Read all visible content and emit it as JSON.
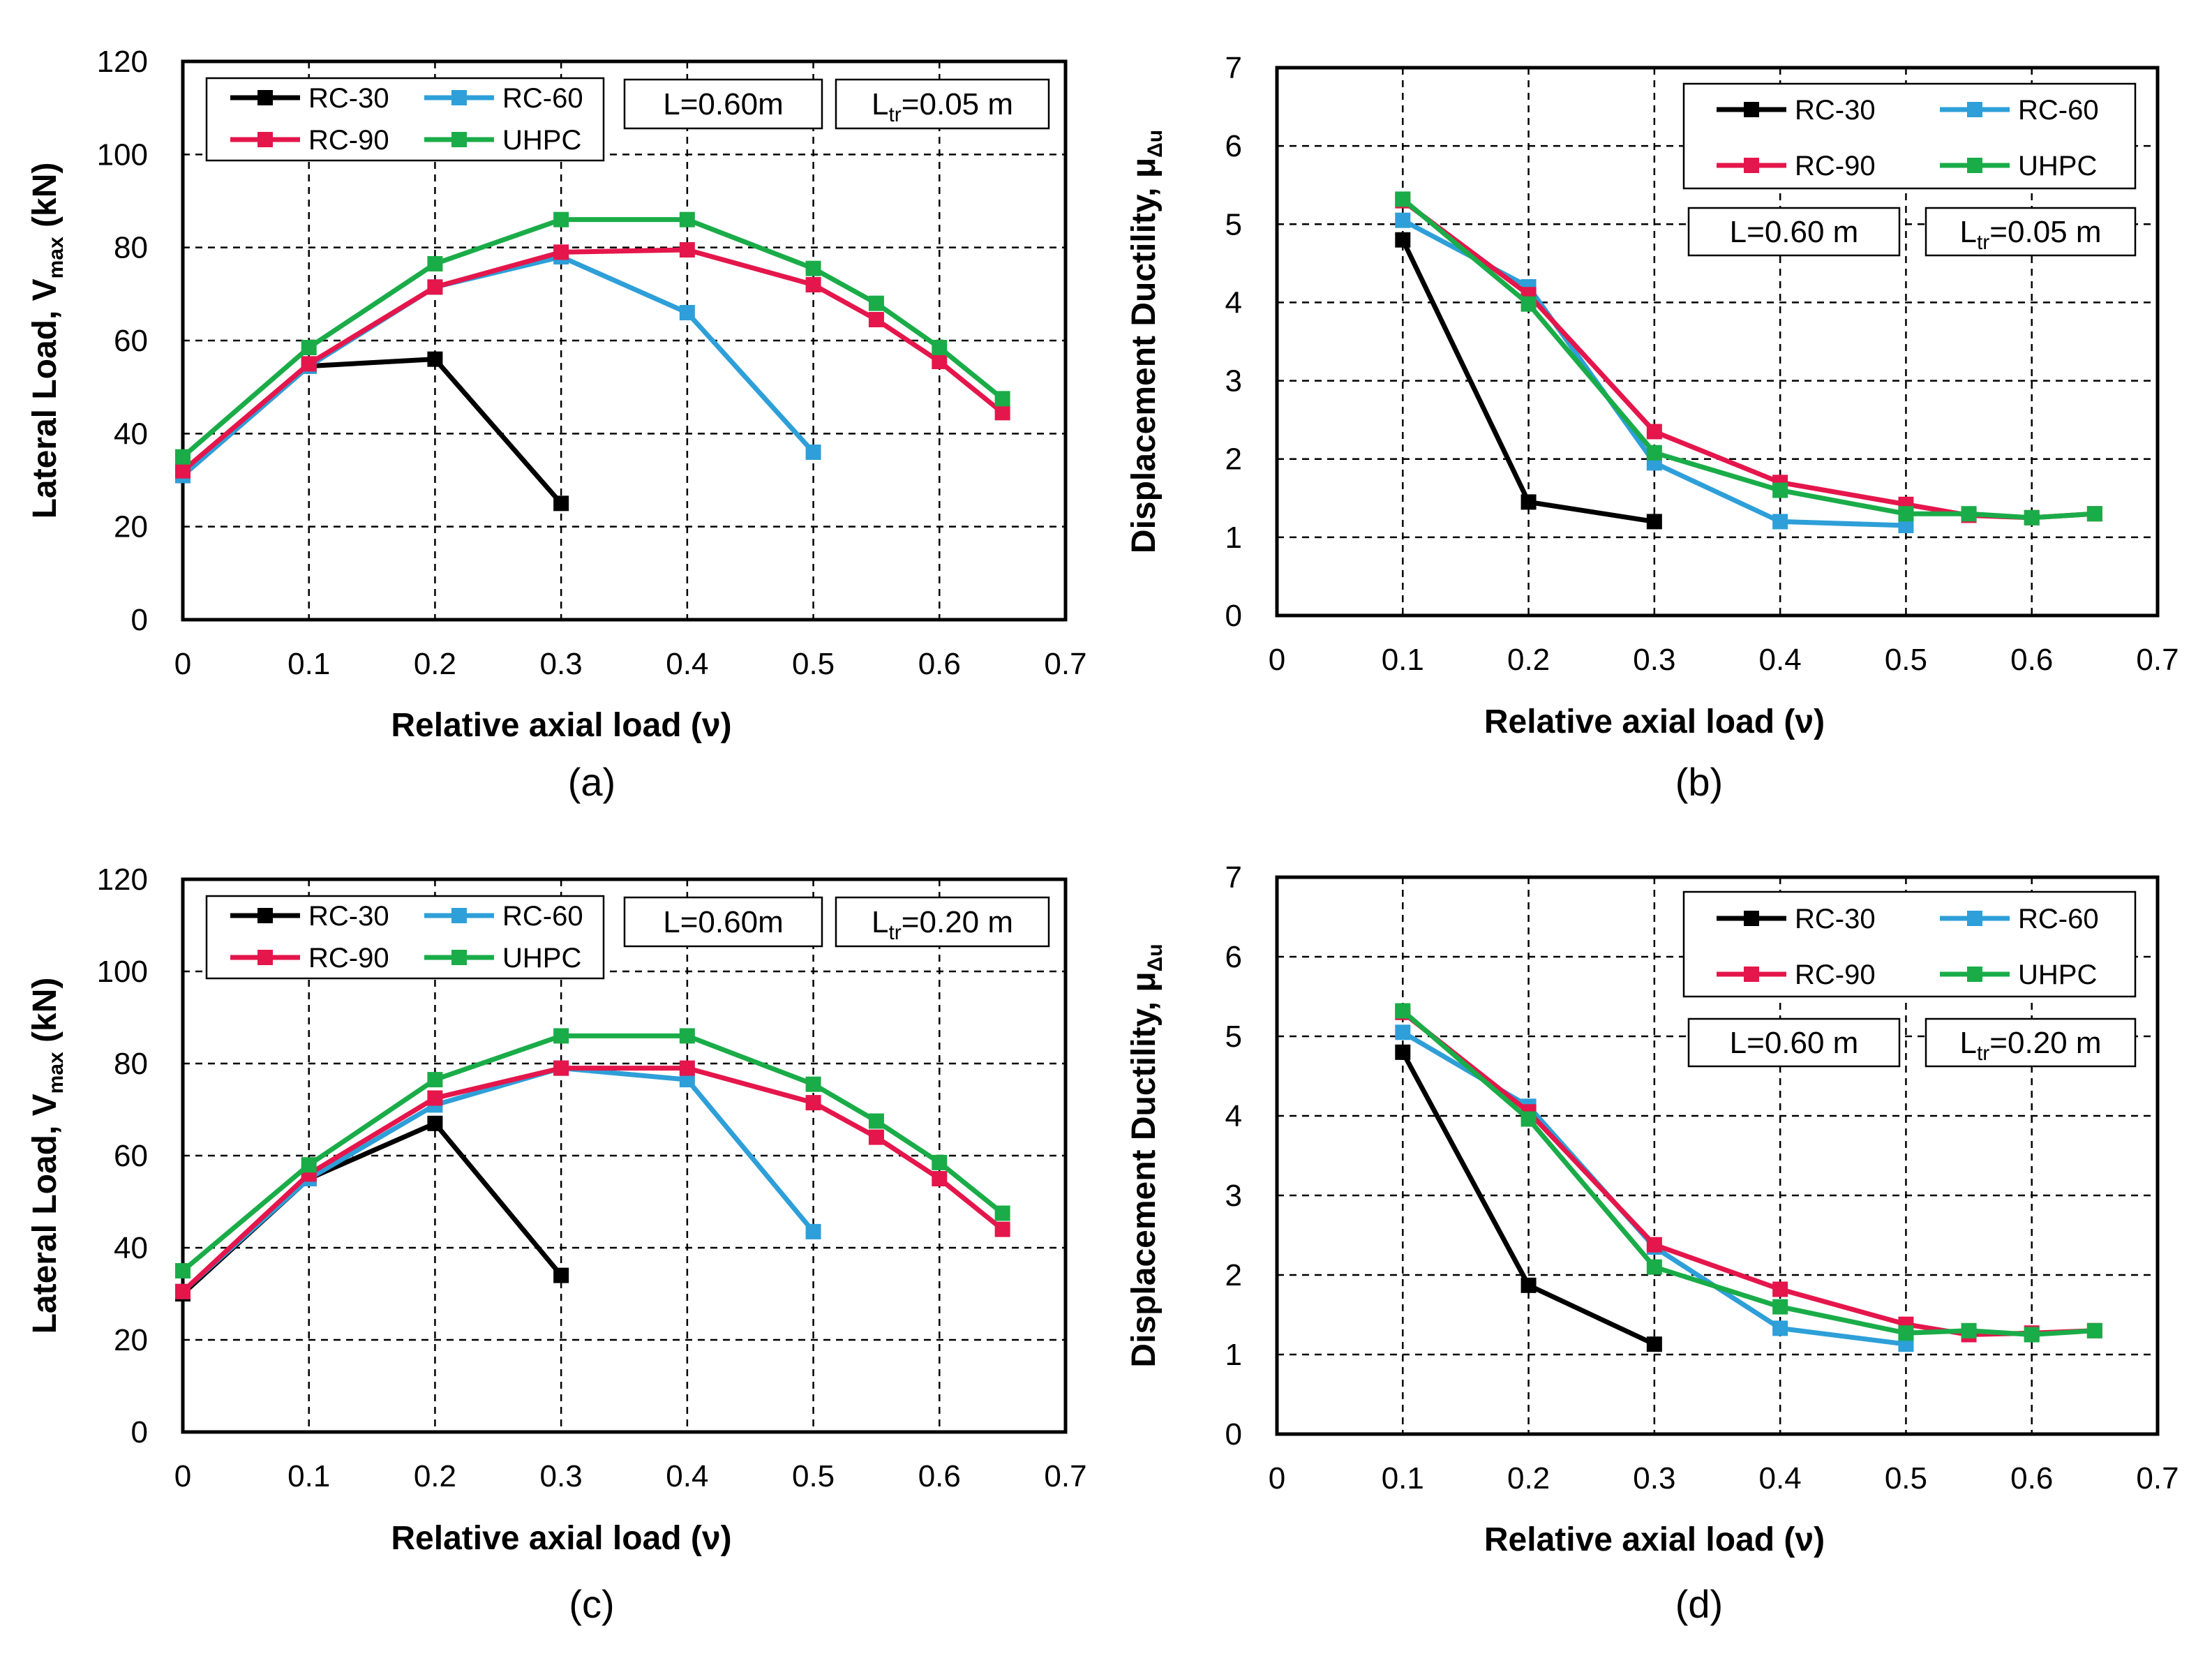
{
  "series_colors": {
    "RC-30": "#000000",
    "RC-60": "#2e9fd8",
    "RC-90": "#e4164b",
    "UHPC": "#1aac48"
  },
  "chart_data": [
    {
      "panel": "(a)",
      "type": "line",
      "xlabel": "Relative axial load (ν)",
      "ylabel_parts": {
        "main": "Lateral Load, V",
        "sub": "max",
        "tail": " (kN)"
      },
      "xlim": [
        0,
        0.7
      ],
      "ylim": [
        0,
        120
      ],
      "xticks": [
        "0",
        "0.1",
        "0.2",
        "0.3",
        "0.4",
        "0.5",
        "0.6",
        "0.7"
      ],
      "yticks": [
        "0",
        "20",
        "40",
        "60",
        "80",
        "100",
        "120"
      ],
      "legend": [
        "RC-30",
        "RC-60",
        "RC-90",
        "UHPC"
      ],
      "info_box_1": {
        "text": "L=0.60m"
      },
      "info_box_2": {
        "main": "L",
        "sub": "tr",
        "tail": "=0.05 m"
      },
      "series": [
        {
          "name": "RC-30",
          "x": [
            0,
            0.1,
            0.2,
            0.3
          ],
          "y": [
            31,
            54.5,
            56,
            25
          ]
        },
        {
          "name": "RC-60",
          "x": [
            0,
            0.1,
            0.2,
            0.3,
            0.4,
            0.5
          ],
          "y": [
            31,
            54.5,
            71.5,
            78,
            66,
            36
          ]
        },
        {
          "name": "RC-90",
          "x": [
            0,
            0.1,
            0.2,
            0.3,
            0.4,
            0.5,
            0.55,
            0.6,
            0.65
          ],
          "y": [
            32,
            55,
            71.5,
            79,
            79.5,
            72,
            64.5,
            55.5,
            44.5
          ]
        },
        {
          "name": "UHPC",
          "x": [
            0,
            0.1,
            0.2,
            0.3,
            0.4,
            0.5,
            0.55,
            0.6,
            0.65
          ],
          "y": [
            35,
            58.5,
            76.5,
            86,
            86,
            75.5,
            68,
            58.5,
            47.5
          ]
        }
      ]
    },
    {
      "panel": "(b)",
      "type": "line",
      "xlabel": "Relative axial load (ν)",
      "ylabel_parts": {
        "main": "Displacement Ductility, μ",
        "sub": "Δu",
        "tail": ""
      },
      "xlim": [
        0,
        0.7
      ],
      "ylim": [
        0,
        7
      ],
      "xticks": [
        "0",
        "0.1",
        "0.2",
        "0.3",
        "0.4",
        "0.5",
        "0.6",
        "0.7"
      ],
      "yticks": [
        "0",
        "1",
        "2",
        "3",
        "4",
        "5",
        "6",
        "7"
      ],
      "legend": [
        "RC-30",
        "RC-60",
        "RC-90",
        "UHPC"
      ],
      "info_box_1": {
        "text": "L=0.60 m"
      },
      "info_box_2": {
        "main": "L",
        "sub": "tr",
        "tail": "=0.05 m"
      },
      "series": [
        {
          "name": "RC-30",
          "x": [
            0.1,
            0.2,
            0.3
          ],
          "y": [
            4.8,
            1.45,
            1.2
          ]
        },
        {
          "name": "RC-60",
          "x": [
            0.1,
            0.2,
            0.3,
            0.4,
            0.5
          ],
          "y": [
            5.05,
            4.2,
            1.95,
            1.2,
            1.15
          ]
        },
        {
          "name": "RC-90",
          "x": [
            0.1,
            0.2,
            0.3,
            0.4,
            0.5,
            0.55,
            0.6,
            0.65
          ],
          "y": [
            5.3,
            4.1,
            2.35,
            1.7,
            1.42,
            1.28,
            1.25,
            1.3
          ]
        },
        {
          "name": "UHPC",
          "x": [
            0.1,
            0.2,
            0.3,
            0.4,
            0.5,
            0.55,
            0.6,
            0.65
          ],
          "y": [
            5.32,
            3.98,
            2.08,
            1.6,
            1.3,
            1.3,
            1.25,
            1.3
          ]
        }
      ]
    },
    {
      "panel": "(c)",
      "type": "line",
      "xlabel": "Relative axial load (ν)",
      "ylabel_parts": {
        "main": "Lateral Load, V",
        "sub": "max",
        "tail": " (kN)"
      },
      "xlim": [
        0,
        0.7
      ],
      "ylim": [
        0,
        120
      ],
      "xticks": [
        "0",
        "0.1",
        "0.2",
        "0.3",
        "0.4",
        "0.5",
        "0.6",
        "0.7"
      ],
      "yticks": [
        "0",
        "20",
        "40",
        "60",
        "80",
        "100",
        "120"
      ],
      "legend": [
        "RC-30",
        "RC-60",
        "RC-90",
        "UHPC"
      ],
      "info_box_1": {
        "text": "L=0.60m"
      },
      "info_box_2": {
        "main": "L",
        "sub": "tr",
        "tail": "=0.20 m"
      },
      "series": [
        {
          "name": "RC-30",
          "x": [
            0,
            0.1,
            0.2,
            0.3
          ],
          "y": [
            30,
            55,
            67,
            34
          ]
        },
        {
          "name": "RC-60",
          "x": [
            0,
            0.1,
            0.2,
            0.3,
            0.4,
            0.5
          ],
          "y": [
            30.5,
            55,
            71,
            79,
            76.5,
            43.5
          ]
        },
        {
          "name": "RC-90",
          "x": [
            0,
            0.1,
            0.2,
            0.3,
            0.4,
            0.5,
            0.55,
            0.6,
            0.65
          ],
          "y": [
            30.5,
            56,
            72.5,
            79,
            79,
            71.5,
            64,
            55,
            44
          ]
        },
        {
          "name": "UHPC",
          "x": [
            0,
            0.1,
            0.2,
            0.3,
            0.4,
            0.5,
            0.55,
            0.6,
            0.65
          ],
          "y": [
            35,
            58,
            76.5,
            86,
            86,
            75.5,
            67.5,
            58.5,
            47.5
          ]
        }
      ]
    },
    {
      "panel": "(d)",
      "type": "line",
      "xlabel": "Relative axial load (ν)",
      "ylabel_parts": {
        "main": "Displacement Ductility, μ",
        "sub": "Δu",
        "tail": ""
      },
      "xlim": [
        0,
        0.7
      ],
      "ylim": [
        0,
        7
      ],
      "xticks": [
        "0",
        "0.1",
        "0.2",
        "0.3",
        "0.4",
        "0.5",
        "0.6",
        "0.7"
      ],
      "yticks": [
        "0",
        "1",
        "2",
        "3",
        "4",
        "5",
        "6",
        "7"
      ],
      "legend": [
        "RC-30",
        "RC-60",
        "RC-90",
        "UHPC"
      ],
      "info_box_1": {
        "text": "L=0.60 m"
      },
      "info_box_2": {
        "main": "L",
        "sub": "tr",
        "tail": "=0.20 m"
      },
      "series": [
        {
          "name": "RC-30",
          "x": [
            0.1,
            0.2,
            0.3
          ],
          "y": [
            4.8,
            1.87,
            1.13
          ]
        },
        {
          "name": "RC-60",
          "x": [
            0.1,
            0.2,
            0.3,
            0.4,
            0.5
          ],
          "y": [
            5.05,
            4.12,
            2.35,
            1.33,
            1.13
          ]
        },
        {
          "name": "RC-90",
          "x": [
            0.1,
            0.2,
            0.3,
            0.4,
            0.5,
            0.55,
            0.6,
            0.65
          ],
          "y": [
            5.3,
            4.05,
            2.38,
            1.82,
            1.38,
            1.25,
            1.27,
            1.3
          ]
        },
        {
          "name": "UHPC",
          "x": [
            0.1,
            0.2,
            0.3,
            0.4,
            0.5,
            0.55,
            0.6,
            0.65
          ],
          "y": [
            5.32,
            3.96,
            2.1,
            1.6,
            1.27,
            1.3,
            1.25,
            1.3
          ]
        }
      ]
    }
  ]
}
